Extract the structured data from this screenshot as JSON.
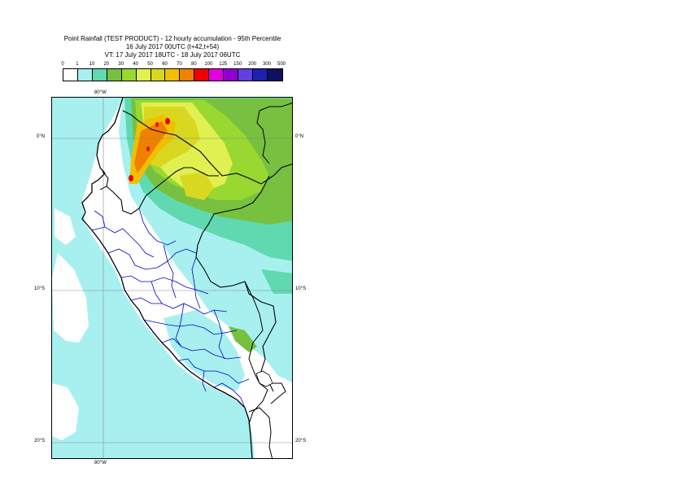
{
  "title": {
    "line1": "Point Rainfall (TEST PRODUCT) - 12 hourly accumulation - 95th Percentile",
    "line2": "16 July 2017 00UTC (t+42,t+54)",
    "line3": "VT: 17 July 2017 18UTC - 18 July 2017 06UTC"
  },
  "legend": {
    "labels": [
      "0",
      "1",
      "10",
      "20",
      "30",
      "40",
      "50",
      "60",
      "70",
      "80",
      "100",
      "125",
      "150",
      "200",
      "300",
      "500"
    ],
    "colors": [
      "#ffffff",
      "#a8f0f0",
      "#60d8b0",
      "#78c040",
      "#98d830",
      "#e0f050",
      "#d8d820",
      "#f0c000",
      "#f08000",
      "#f00000",
      "#e000e0",
      "#9000d0",
      "#6040e0",
      "#2020b0",
      "#101060"
    ]
  },
  "axes": {
    "lon_top": "80°W",
    "lon_bottom": "80°W",
    "lat_left": [
      "0°N",
      "10°S",
      "20°S"
    ],
    "lat_right": [
      "0°N",
      "10°S",
      "20°S"
    ]
  },
  "colors": {
    "coast": "#000000",
    "borders": "#000000",
    "regions": "#0000cc",
    "grid": "#8a8a8a"
  }
}
